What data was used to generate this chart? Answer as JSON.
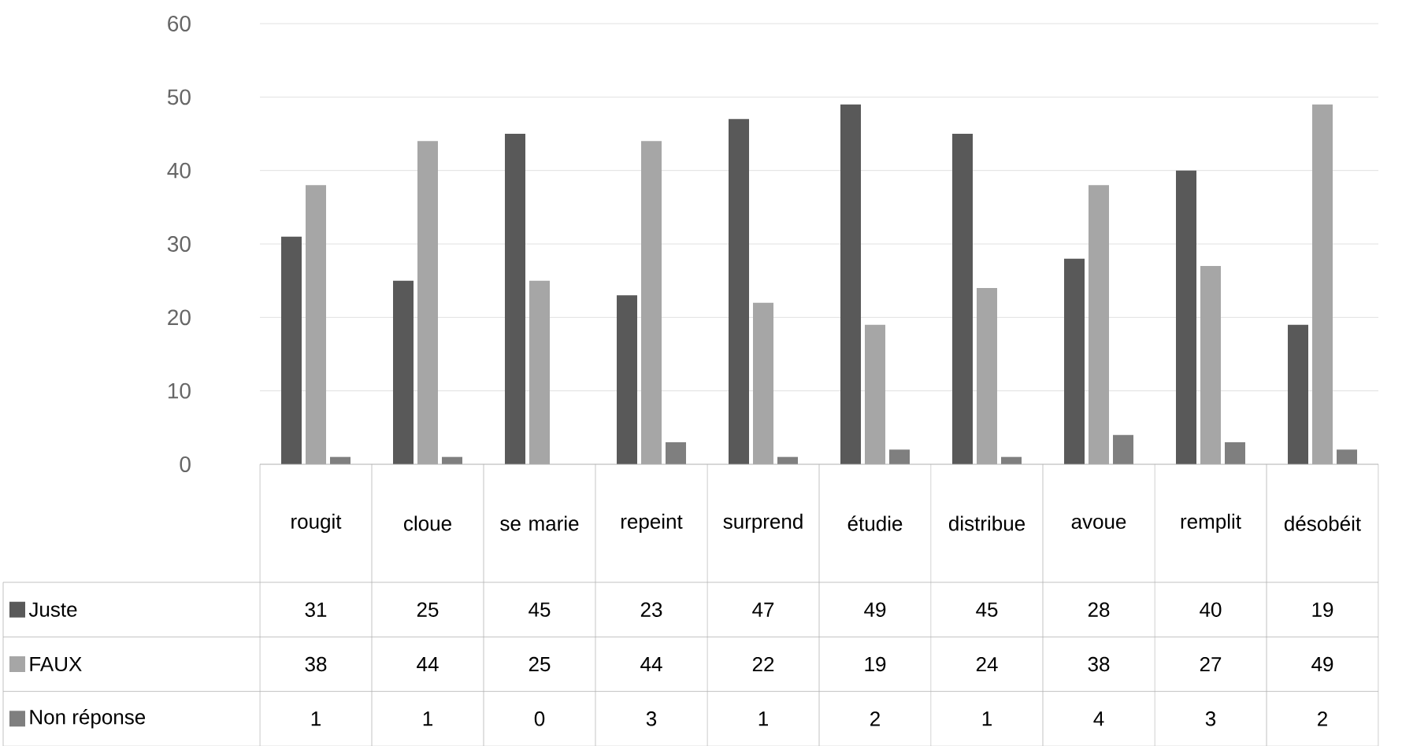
{
  "chart_data": {
    "type": "bar",
    "categories": [
      "rougit",
      "cloue",
      "se marie",
      "repeint",
      "surprend",
      "étudie",
      "distribue",
      "avoue",
      "remplit",
      "désobéit"
    ],
    "series": [
      {
        "name": "Juste",
        "color": "#595959",
        "values": [
          31,
          25,
          45,
          23,
          47,
          49,
          45,
          28,
          40,
          19
        ]
      },
      {
        "name": "FAUX",
        "color": "#a6a6a6",
        "values": [
          38,
          44,
          25,
          44,
          22,
          19,
          24,
          38,
          27,
          49
        ]
      },
      {
        "name": "Non réponse",
        "color": "#7f7f7f",
        "values": [
          1,
          1,
          0,
          3,
          1,
          2,
          1,
          4,
          3,
          2
        ]
      }
    ],
    "ylim": [
      0,
      60
    ],
    "yticks": [
      0,
      10,
      20,
      30,
      40,
      50,
      60
    ],
    "grid": "y",
    "legend": "bottom",
    "data_labels": true
  }
}
